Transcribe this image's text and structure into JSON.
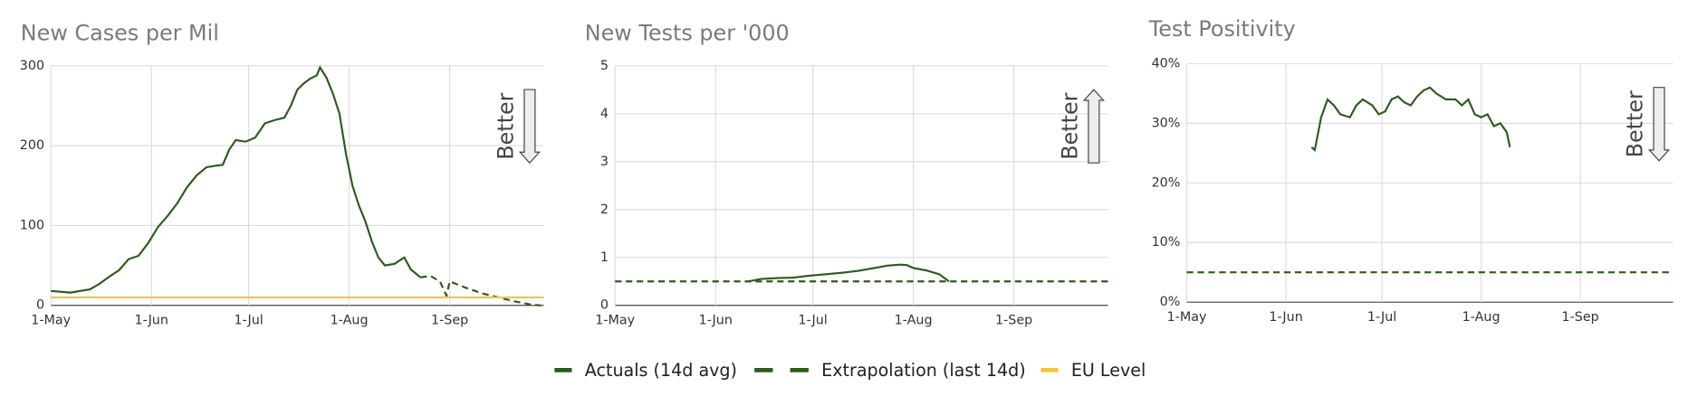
{
  "chart_data": [
    {
      "type": "line",
      "title": "New Cases per Mil",
      "annotation": "Better",
      "better_direction": "down",
      "grid": true,
      "xlim": [
        0,
        152
      ],
      "xticks": [
        {
          "value": 0,
          "label": "1-May"
        },
        {
          "value": 31,
          "label": "1-Jun"
        },
        {
          "value": 61,
          "label": "1-Jul"
        },
        {
          "value": 92,
          "label": "1-Aug"
        },
        {
          "value": 123,
          "label": "1-Sep"
        }
      ],
      "ylim": [
        0,
        300
      ],
      "yticks": [
        0,
        100,
        200,
        300
      ],
      "series": [
        {
          "name": "Actuals (14d avg)",
          "color": "#2d5a1b",
          "dash": false,
          "x": [
            0,
            3,
            6,
            9,
            12,
            15,
            18,
            21,
            24,
            27,
            30,
            33,
            36,
            39,
            42,
            45,
            48,
            51,
            53,
            55,
            57,
            60,
            63,
            66,
            69,
            72,
            74,
            76,
            78,
            80,
            82,
            83,
            85,
            87,
            89,
            91,
            93,
            95,
            97,
            99,
            101,
            103,
            106,
            109,
            111,
            114
          ],
          "values": [
            18,
            17,
            16,
            18,
            20,
            27,
            36,
            44,
            58,
            62,
            78,
            98,
            112,
            128,
            148,
            163,
            173,
            175,
            176,
            195,
            207,
            205,
            210,
            228,
            232,
            235,
            250,
            270,
            278,
            284,
            288,
            298,
            285,
            265,
            240,
            190,
            150,
            125,
            105,
            80,
            60,
            50,
            52,
            60,
            45,
            35
          ]
        },
        {
          "name": "Extrapolation (last 14d)",
          "color": "#2d5a1b",
          "dash": true,
          "x": [
            114,
            117,
            120,
            122,
            123,
            128,
            133,
            138,
            143,
            148,
            151
          ],
          "values": [
            35,
            37,
            30,
            12,
            30,
            22,
            15,
            10,
            5,
            1,
            0
          ]
        },
        {
          "name": "EU Level",
          "color": "#f5c242",
          "dash": false,
          "x": [
            0,
            152
          ],
          "values": [
            10,
            10
          ]
        }
      ]
    },
    {
      "type": "line",
      "title": "New Tests per '000",
      "annotation": "Better",
      "better_direction": "up",
      "grid": true,
      "xlim": [
        0,
        152
      ],
      "xticks": [
        {
          "value": 0,
          "label": "1-May"
        },
        {
          "value": 31,
          "label": "1-Jun"
        },
        {
          "value": 61,
          "label": "1-Jul"
        },
        {
          "value": 92,
          "label": "1-Aug"
        },
        {
          "value": 123,
          "label": "1-Sep"
        }
      ],
      "ylim": [
        0,
        5
      ],
      "yticks": [
        0,
        1,
        2,
        3,
        4,
        5
      ],
      "series": [
        {
          "color": "#2d5a1b",
          "dash": false,
          "x": [
            41,
            45,
            50,
            55,
            60,
            65,
            70,
            75,
            80,
            84,
            88,
            90,
            92,
            96,
            100,
            103
          ],
          "values": [
            0.5,
            0.55,
            0.57,
            0.58,
            0.62,
            0.65,
            0.68,
            0.72,
            0.78,
            0.83,
            0.85,
            0.84,
            0.78,
            0.73,
            0.65,
            0.5
          ]
        },
        {
          "color": "#2d5a1b",
          "dash": true,
          "x": [
            0,
            152
          ],
          "values": [
            0.5,
            0.5
          ]
        }
      ]
    },
    {
      "type": "line",
      "title": "Test Positivity",
      "annotation": "Better",
      "better_direction": "down",
      "grid": true,
      "xlim": [
        0,
        152
      ],
      "xticks": [
        {
          "value": 0,
          "label": "1-May"
        },
        {
          "value": 31,
          "label": "1-Jun"
        },
        {
          "value": 61,
          "label": "1-Jul"
        },
        {
          "value": 92,
          "label": "1-Aug"
        },
        {
          "value": 123,
          "label": "1-Sep"
        }
      ],
      "ylim": [
        0,
        40
      ],
      "yticks": [
        {
          "value": 0,
          "label": "0%"
        },
        {
          "value": 10,
          "label": "10%"
        },
        {
          "value": 20,
          "label": "20%"
        },
        {
          "value": 30,
          "label": "30%"
        },
        {
          "value": 40,
          "label": "40%"
        }
      ],
      "series": [
        {
          "color": "#2d5a1b",
          "dash": false,
          "x": [
            39,
            40,
            42,
            44,
            46,
            48,
            51,
            53,
            55,
            58,
            60,
            62,
            64,
            66,
            68,
            70,
            72,
            74,
            76,
            78,
            81,
            84,
            86,
            88,
            90,
            92,
            94,
            96,
            98,
            100,
            101
          ],
          "values": [
            26,
            25.5,
            31,
            34,
            33,
            31.5,
            31,
            33,
            34,
            33,
            31.5,
            32,
            34,
            34.5,
            33.5,
            33,
            34.5,
            35.5,
            36,
            35,
            34,
            34,
            33,
            34,
            31.5,
            31,
            31.5,
            29.5,
            30,
            28.5,
            26
          ]
        },
        {
          "color": "#2d5a1b",
          "dash": true,
          "x": [
            0,
            152
          ],
          "values": [
            5,
            5
          ]
        }
      ]
    }
  ]
}
